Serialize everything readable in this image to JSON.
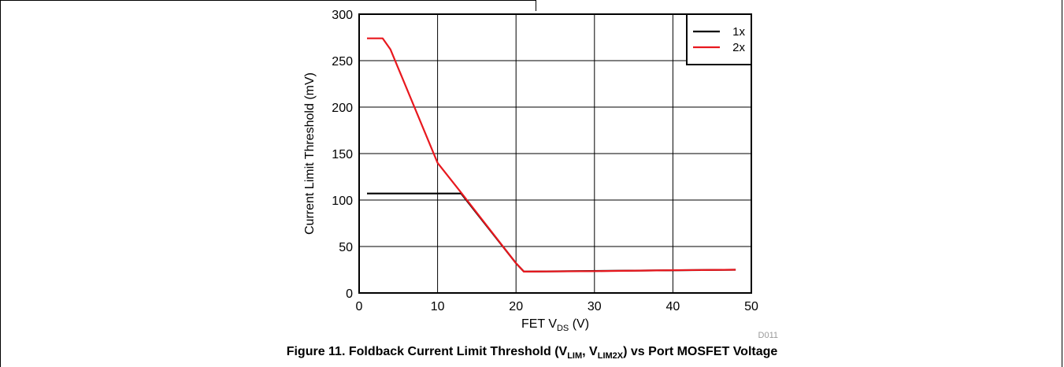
{
  "figure": {
    "caption_prefix": "Figure 11. Foldback Current Limit Threshold (V",
    "caption_sub1": "LIM",
    "caption_mid": ", V",
    "caption_sub2": "LIM2X",
    "caption_suffix": ") vs Port MOSFET Voltage",
    "code": "D011"
  },
  "chart_data": {
    "type": "line",
    "title": "",
    "xlabel_main": "FET V",
    "xlabel_sub": "DS",
    "xlabel_unit": " (V)",
    "ylabel": "Current Limit Threshold (mV)",
    "xlim": [
      0,
      50
    ],
    "ylim": [
      0,
      300
    ],
    "x_ticks": [
      0,
      10,
      20,
      30,
      40,
      50
    ],
    "y_ticks": [
      0,
      50,
      100,
      150,
      200,
      250,
      300
    ],
    "grid": true,
    "legend_position": "top-right",
    "series": [
      {
        "name": "1x",
        "color": "#000000",
        "points": [
          [
            1,
            107
          ],
          [
            13,
            107
          ],
          [
            20,
            32
          ],
          [
            21,
            23
          ],
          [
            48,
            25
          ]
        ]
      },
      {
        "name": "2x",
        "color": "#e8181e",
        "points": [
          [
            1,
            274
          ],
          [
            3,
            274
          ],
          [
            4,
            262
          ],
          [
            10,
            140
          ],
          [
            13,
            108
          ],
          [
            20,
            32
          ],
          [
            21,
            23
          ],
          [
            30,
            23.5
          ],
          [
            40,
            24.5
          ],
          [
            48,
            25
          ]
        ]
      }
    ]
  }
}
